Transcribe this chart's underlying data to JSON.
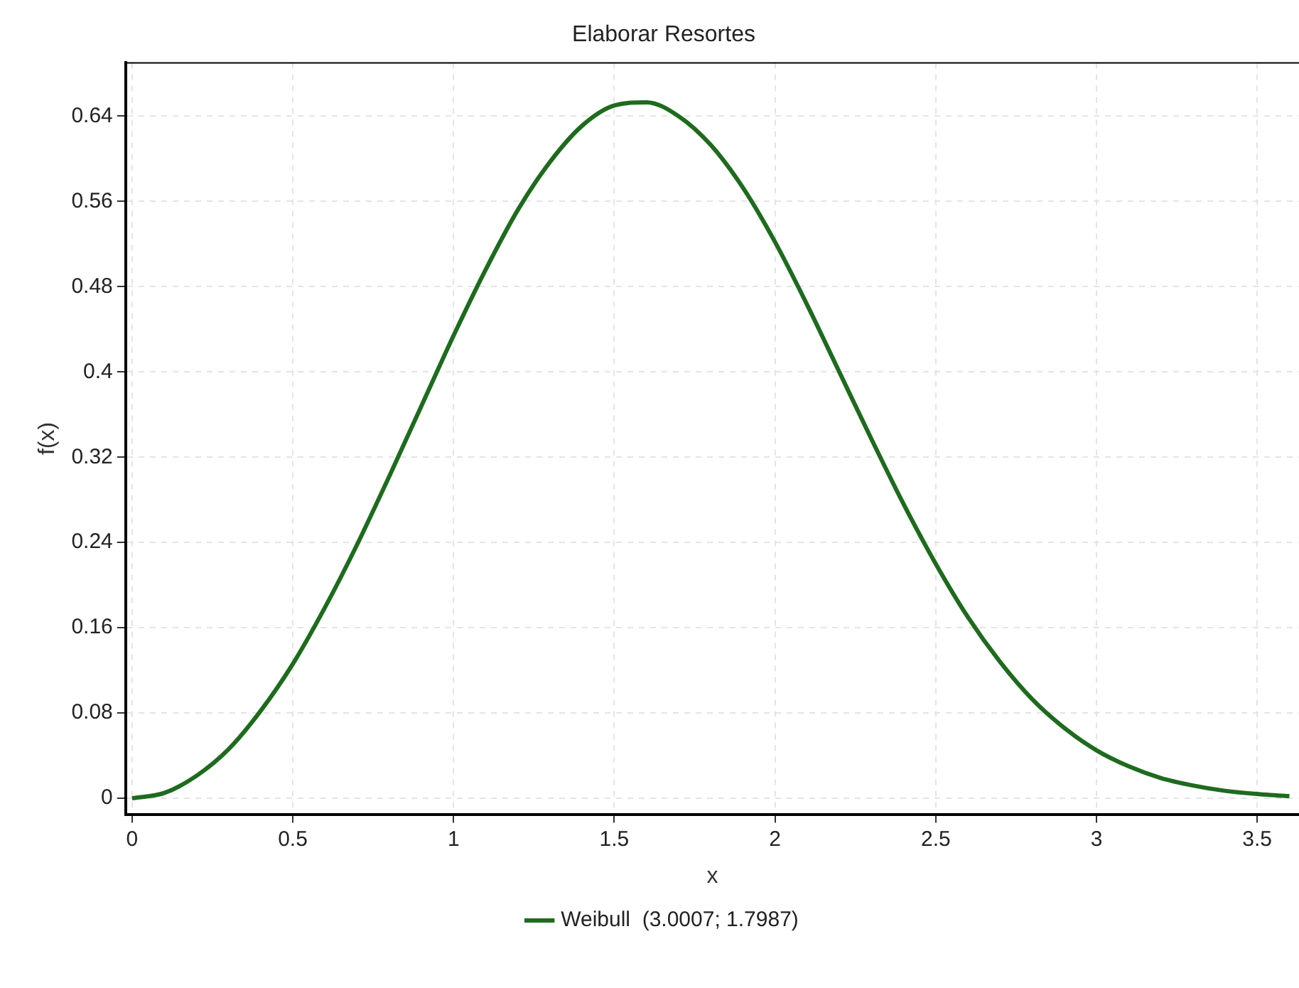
{
  "chart_data": {
    "type": "line",
    "title": "Elaborar Resortes",
    "xlabel": "x",
    "ylabel": "f(x)",
    "x": [
      0,
      0.1,
      0.2,
      0.3,
      0.4,
      0.5,
      0.6,
      0.7,
      0.8,
      0.9,
      1,
      1.1,
      1.2,
      1.3,
      1.4,
      1.5,
      1.6,
      1.7,
      1.8,
      1.9,
      2,
      2.1,
      2.2,
      2.3,
      2.4,
      2.5,
      2.6,
      2.7,
      2.8,
      2.9,
      3,
      3.1,
      3.2,
      3.3,
      3.4,
      3.5,
      3.6
    ],
    "series": [
      {
        "name": "Weibull  (3.0007; 1.7987)",
        "color": "#1e6b1e",
        "values": [
          0,
          0.005,
          0.021,
          0.046,
          0.082,
          0.126,
          0.179,
          0.238,
          0.302,
          0.368,
          0.434,
          0.496,
          0.552,
          0.597,
          0.631,
          0.65,
          0.653,
          0.64,
          0.613,
          0.573,
          0.522,
          0.463,
          0.4,
          0.337,
          0.276,
          0.22,
          0.17,
          0.128,
          0.093,
          0.066,
          0.045,
          0.03,
          0.019,
          0.012,
          0.007,
          0.004,
          0.002
        ]
      }
    ],
    "xlim": [
      -0.02,
      3.63
    ],
    "xticks": [
      0,
      0.5,
      1,
      1.5,
      2,
      2.5,
      3,
      3.5
    ],
    "ylim": [
      -0.015,
      0.69
    ],
    "yticks": [
      0,
      0.08,
      0.16,
      0.24,
      0.32,
      0.4,
      0.48,
      0.56,
      0.64
    ],
    "grid": true,
    "legend": "bottom",
    "marker": "none",
    "line_style": "solid"
  }
}
